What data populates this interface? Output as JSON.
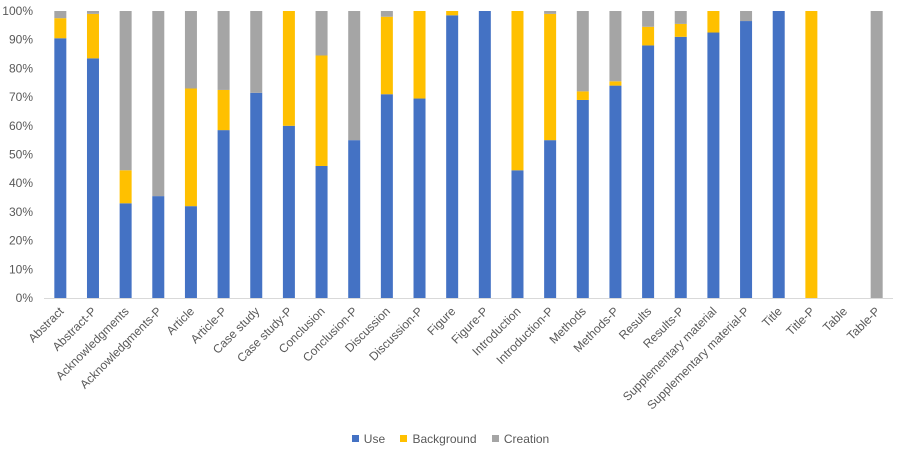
{
  "chart_data": {
    "type": "bar",
    "stacked": true,
    "percent": true,
    "categories": [
      "Abstract",
      "Abstract-P",
      "Acknowledgments",
      "Acknowledgments-P",
      "Article",
      "Article-P",
      "Case study",
      "Case study-P",
      "Conclusion",
      "Conclusion-P",
      "Discussion",
      "Discussion-P",
      "Figure",
      "Figure-P",
      "Introduction",
      "Introduction-P",
      "Methods",
      "Methods-P",
      "Results",
      "Results-P",
      "Supplementary material",
      "Supplementary material-P",
      "Title",
      "Title-P",
      "Table",
      "Table-P"
    ],
    "series": [
      {
        "name": "Use",
        "color": "#4472C4",
        "values": [
          90.5,
          83.5,
          33,
          35.5,
          32,
          58.5,
          71.5,
          60,
          46,
          55,
          71,
          69.5,
          98.5,
          100,
          44.5,
          55,
          69,
          74,
          88,
          91,
          92.5,
          96.5,
          100,
          0,
          0,
          0
        ]
      },
      {
        "name": "Background",
        "color": "#FFC000",
        "values": [
          7,
          15.5,
          11.5,
          0,
          41,
          14,
          0,
          40,
          38.5,
          0,
          27,
          30.5,
          1.5,
          0,
          55.5,
          44,
          3,
          1.5,
          6.5,
          4.5,
          7.5,
          0,
          0,
          100,
          0,
          0
        ]
      },
      {
        "name": "Creation",
        "color": "#A5A5A5",
        "values": [
          2.5,
          1,
          55.5,
          64.5,
          27,
          27.5,
          28.5,
          0,
          15.5,
          45,
          2,
          0,
          0,
          0,
          0,
          1,
          28,
          24.5,
          5.5,
          4.5,
          0,
          3.5,
          0,
          0,
          0,
          100
        ]
      }
    ],
    "y_ticks": [
      "0%",
      "10%",
      "20%",
      "30%",
      "40%",
      "50%",
      "60%",
      "70%",
      "80%",
      "90%",
      "100%"
    ],
    "ylim": [
      0,
      100
    ],
    "grid": false,
    "legend_position": "bottom"
  }
}
